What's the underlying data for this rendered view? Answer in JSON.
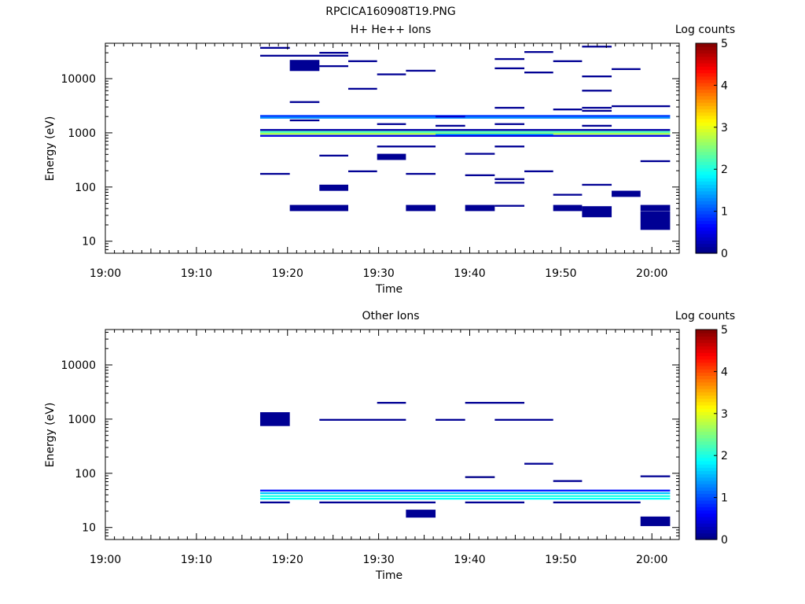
{
  "figure_title": "RPCICA160908T19.PNG",
  "chart_data": [
    {
      "type": "heatmap",
      "title": "H+ He++ Ions",
      "xlabel": "Time",
      "ylabel": "Energy (eV)",
      "x_ticks": [
        "19:00",
        "19:10",
        "19:20",
        "19:30",
        "19:40",
        "19:50",
        "20:00"
      ],
      "xlim": [
        "19:00",
        "20:03"
      ],
      "y_ticks": [
        "10",
        "100",
        "1000",
        "10000"
      ],
      "y_scale": "log",
      "ylim": [
        6,
        45000
      ],
      "colorbar": {
        "label": "Log counts",
        "range": [
          0,
          5
        ],
        "ticks": [
          "0",
          "1",
          "2",
          "3",
          "4",
          "5"
        ],
        "colormap": "jet"
      },
      "cells": [
        {
          "t0": "19:17:00",
          "t1": "19:20:15",
          "e": 37000,
          "v": 0.1
        },
        {
          "t0": "19:17:00",
          "t1": "19:26:40",
          "e": 26500,
          "v": 0.1
        },
        {
          "t0": "19:23:30",
          "t1": "19:26:40",
          "e": 30000,
          "v": 0.1
        },
        {
          "t0": "19:20:15",
          "t1": "19:23:30",
          "e": 17500,
          "v": 0.1,
          "h": 1.6
        },
        {
          "t0": "19:23:30",
          "t1": "19:26:40",
          "e": 17000,
          "v": 0.1
        },
        {
          "t0": "19:26:40",
          "t1": "19:29:50",
          "e": 21000,
          "v": 0.1
        },
        {
          "t0": "19:29:50",
          "t1": "19:33:00",
          "e": 12000,
          "v": 0.1
        },
        {
          "t0": "19:33:00",
          "t1": "19:36:15",
          "e": 14000,
          "v": 0.1
        },
        {
          "t0": "19:26:40",
          "t1": "19:29:50",
          "e": 6500,
          "v": 0.1
        },
        {
          "t0": "19:20:15",
          "t1": "19:23:30",
          "e": 3700,
          "v": 0.1
        },
        {
          "t0": "19:42:45",
          "t1": "19:46:00",
          "e": 23000,
          "v": 0.1
        },
        {
          "t0": "19:42:45",
          "t1": "19:46:00",
          "e": 15500,
          "v": 0.1
        },
        {
          "t0": "19:46:00",
          "t1": "19:49:10",
          "e": 31000,
          "v": 0.1
        },
        {
          "t0": "19:46:00",
          "t1": "19:49:10",
          "e": 13000,
          "v": 0.1
        },
        {
          "t0": "19:49:10",
          "t1": "19:52:20",
          "e": 21000,
          "v": 0.1
        },
        {
          "t0": "19:52:20",
          "t1": "19:55:35",
          "e": 39000,
          "v": 0.1
        },
        {
          "t0": "19:52:20",
          "t1": "19:55:35",
          "e": 11000,
          "v": 0.1
        },
        {
          "t0": "19:52:20",
          "t1": "19:55:35",
          "e": 6000,
          "v": 0.1
        },
        {
          "t0": "19:55:35",
          "t1": "19:58:45",
          "e": 15000,
          "v": 0.1
        },
        {
          "t0": "19:42:45",
          "t1": "19:46:00",
          "e": 2900,
          "v": 0.1
        },
        {
          "t0": "19:49:10",
          "t1": "19:52:20",
          "e": 2700,
          "v": 0.1
        },
        {
          "t0": "19:52:20",
          "t1": "19:55:35",
          "e": 2900,
          "v": 0.1
        },
        {
          "t0": "19:52:20",
          "t1": "19:55:35",
          "e": 2550,
          "v": 0.1
        },
        {
          "t0": "19:55:35",
          "t1": "20:02:00",
          "e": 3100,
          "v": 0.1
        },
        {
          "t0": "19:17:00",
          "t1": "20:02:00",
          "e": 2050,
          "v": 0.9
        },
        {
          "t0": "19:17:00",
          "t1": "20:02:00",
          "e": 1900,
          "v": 1.3
        },
        {
          "t0": "19:36:15",
          "t1": "19:39:30",
          "e": 2000,
          "v": 0.4
        },
        {
          "t0": "19:20:15",
          "t1": "19:23:30",
          "e": 1700,
          "v": 0.1
        },
        {
          "t0": "19:29:50",
          "t1": "19:33:00",
          "e": 1450,
          "v": 0.1
        },
        {
          "t0": "19:36:15",
          "t1": "19:39:30",
          "e": 1350,
          "v": 0.1
        },
        {
          "t0": "19:42:45",
          "t1": "19:46:00",
          "e": 1450,
          "v": 0.1
        },
        {
          "t0": "19:52:20",
          "t1": "19:55:35",
          "e": 1350,
          "v": 0.1
        },
        {
          "t0": "19:17:00",
          "t1": "20:02:00",
          "e": 1130,
          "v": 0.2
        },
        {
          "t0": "19:17:00",
          "t1": "20:02:00",
          "e": 1040,
          "v": 2.2
        },
        {
          "t0": "19:17:00",
          "t1": "20:02:00",
          "e": 960,
          "v": 2.7
        },
        {
          "t0": "19:36:15",
          "t1": "19:49:10",
          "e": 930,
          "v": 1.5
        },
        {
          "t0": "19:17:00",
          "t1": "20:02:00",
          "e": 880,
          "v": 0.5
        },
        {
          "t0": "19:29:50",
          "t1": "19:36:15",
          "e": 560,
          "v": 0.1
        },
        {
          "t0": "19:29:50",
          "t1": "19:33:00",
          "e": 360,
          "v": 0.1,
          "h": 1.3
        },
        {
          "t0": "19:23:30",
          "t1": "19:26:40",
          "e": 380,
          "v": 0.1
        },
        {
          "t0": "19:39:30",
          "t1": "19:42:45",
          "e": 410,
          "v": 0.1
        },
        {
          "t0": "19:42:45",
          "t1": "19:46:00",
          "e": 560,
          "v": 0.1
        },
        {
          "t0": "19:58:45",
          "t1": "20:02:00",
          "e": 300,
          "v": 0.1
        },
        {
          "t0": "19:17:00",
          "t1": "19:20:15",
          "e": 175,
          "v": 0.1
        },
        {
          "t0": "19:26:40",
          "t1": "19:29:50",
          "e": 195,
          "v": 0.1
        },
        {
          "t0": "19:33:00",
          "t1": "19:36:15",
          "e": 175,
          "v": 0.1
        },
        {
          "t0": "19:39:30",
          "t1": "19:42:45",
          "e": 165,
          "v": 0.1
        },
        {
          "t0": "19:42:45",
          "t1": "19:46:00",
          "e": 140,
          "v": 0.1
        },
        {
          "t0": "19:42:45",
          "t1": "19:46:00",
          "e": 120,
          "v": 0.1
        },
        {
          "t0": "19:46:00",
          "t1": "19:49:10",
          "e": 195,
          "v": 0.1
        },
        {
          "t0": "19:23:30",
          "t1": "19:26:40",
          "e": 97,
          "v": 0.1,
          "h": 1.3
        },
        {
          "t0": "19:49:10",
          "t1": "19:52:20",
          "e": 72,
          "v": 0.1
        },
        {
          "t0": "19:52:20",
          "t1": "19:55:35",
          "e": 110,
          "v": 0.1
        },
        {
          "t0": "19:55:35",
          "t1": "19:58:45",
          "e": 75,
          "v": 0.1,
          "h": 1.3
        },
        {
          "t0": "19:20:15",
          "t1": "19:26:40",
          "e": 41,
          "v": 0.1,
          "h": 1.3
        },
        {
          "t0": "19:33:00",
          "t1": "19:36:15",
          "e": 41,
          "v": 0.1,
          "h": 1.3
        },
        {
          "t0": "19:39:30",
          "t1": "19:42:45",
          "e": 41,
          "v": 0.1,
          "h": 1.3
        },
        {
          "t0": "19:42:45",
          "t1": "19:46:00",
          "e": 45,
          "v": 0.1
        },
        {
          "t0": "19:49:10",
          "t1": "19:52:20",
          "e": 41,
          "v": 0.1,
          "h": 1.3
        },
        {
          "t0": "19:52:20",
          "t1": "19:55:35",
          "e": 35,
          "v": 0.1,
          "h": 1.6
        },
        {
          "t0": "19:58:45",
          "t1": "20:02:00",
          "e": 41,
          "v": 0.1,
          "h": 1.3
        },
        {
          "t0": "19:58:45",
          "t1": "20:02:00",
          "e": 24,
          "v": 0.1,
          "h": 2.2
        }
      ]
    },
    {
      "type": "heatmap",
      "title": "Other Ions",
      "xlabel": "Time",
      "ylabel": "Energy (eV)",
      "x_ticks": [
        "19:00",
        "19:10",
        "19:20",
        "19:30",
        "19:40",
        "19:50",
        "20:00"
      ],
      "xlim": [
        "19:00",
        "20:03"
      ],
      "y_ticks": [
        "10",
        "100",
        "1000",
        "10000"
      ],
      "y_scale": "log",
      "ylim": [
        6,
        45000
      ],
      "colorbar": {
        "label": "Log counts",
        "range": [
          0,
          5
        ],
        "ticks": [
          "0",
          "1",
          "2",
          "3",
          "4",
          "5"
        ],
        "colormap": "jet"
      },
      "cells": [
        {
          "t0": "19:17:00",
          "t1": "19:20:15",
          "e": 1000,
          "v": 0.1,
          "h": 1.8
        },
        {
          "t0": "19:23:30",
          "t1": "19:33:00",
          "e": 970,
          "v": 0.1
        },
        {
          "t0": "19:29:50",
          "t1": "19:33:00",
          "e": 2000,
          "v": 0.1
        },
        {
          "t0": "19:36:15",
          "t1": "19:39:30",
          "e": 970,
          "v": 0.1
        },
        {
          "t0": "19:39:30",
          "t1": "19:46:00",
          "e": 2000,
          "v": 0.1
        },
        {
          "t0": "19:42:45",
          "t1": "19:49:10",
          "e": 970,
          "v": 0.1
        },
        {
          "t0": "19:46:00",
          "t1": "19:49:10",
          "e": 150,
          "v": 0.1
        },
        {
          "t0": "19:39:30",
          "t1": "19:42:45",
          "e": 85,
          "v": 0.05
        },
        {
          "t0": "19:49:10",
          "t1": "19:52:20",
          "e": 72,
          "v": 0.1
        },
        {
          "t0": "19:58:45",
          "t1": "20:02:00",
          "e": 88,
          "v": 0.1
        },
        {
          "t0": "19:17:00",
          "t1": "20:02:00",
          "e": 48,
          "v": 0.7
        },
        {
          "t0": "19:17:00",
          "t1": "20:02:00",
          "e": 43,
          "v": 1.6
        },
        {
          "t0": "19:17:00",
          "t1": "20:02:00",
          "e": 38,
          "v": 2.0
        },
        {
          "t0": "19:17:00",
          "t1": "20:02:00",
          "e": 34,
          "v": 1.9
        },
        {
          "t0": "19:17:00",
          "t1": "19:20:15",
          "e": 29,
          "v": 0.1
        },
        {
          "t0": "19:23:30",
          "t1": "19:36:15",
          "e": 29,
          "v": 0.1
        },
        {
          "t0": "19:39:30",
          "t1": "19:46:00",
          "e": 29,
          "v": 0.1
        },
        {
          "t0": "19:49:10",
          "t1": "19:58:45",
          "e": 29,
          "v": 0.1
        },
        {
          "t0": "19:33:00",
          "t1": "19:36:15",
          "e": 18,
          "v": 0.1,
          "h": 1.4
        },
        {
          "t0": "19:58:45",
          "t1": "20:02:00",
          "e": 13,
          "v": 0.1,
          "h": 1.5
        }
      ]
    }
  ]
}
